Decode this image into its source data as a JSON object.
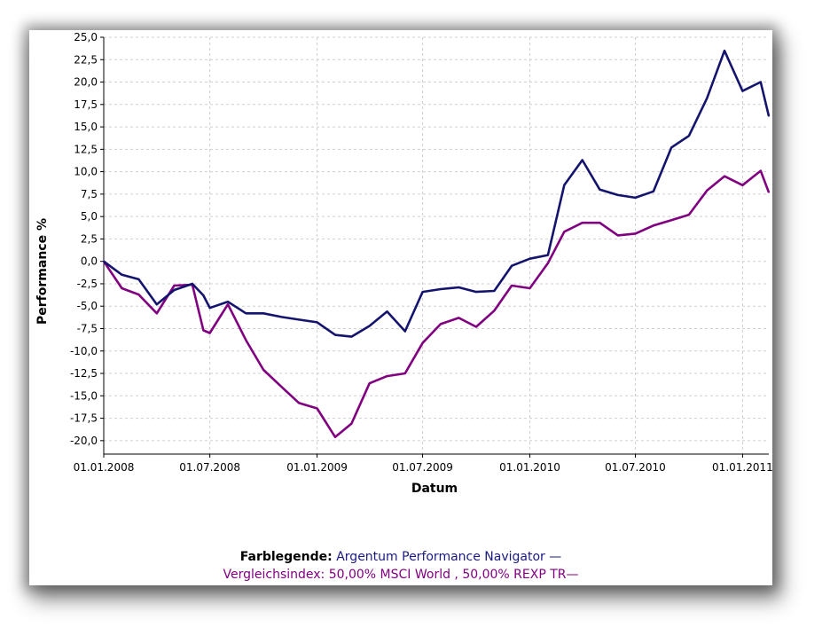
{
  "colors": {
    "series1": "#14146e",
    "series2": "#800080"
  },
  "legend": {
    "label": "Farblegende:",
    "series1_text": "Argentum Performance Navigator —",
    "series2_text": "Vergleichsindex: 50,00% MSCI World , 50,00% REXP TR—"
  },
  "chart_data": {
    "type": "line",
    "title": "",
    "xlabel": "Datum",
    "ylabel": "Performance %",
    "ylim": [
      -21.5,
      25.0
    ],
    "xlim": [
      "2008-01-01",
      "2011-02-15"
    ],
    "grid": true,
    "legend_position": "bottom",
    "y_ticks": [
      "25,0",
      "22,5",
      "20,0",
      "17,5",
      "15,0",
      "12,5",
      "10,0",
      "7,5",
      "5,0",
      "2,5",
      "0,0",
      "-2,5",
      "-5,0",
      "-7,5",
      "-10,0",
      "-12,5",
      "-15,0",
      "-17,5",
      "-20,0"
    ],
    "x_tick_labels": [
      {
        "label": "01.01.2008",
        "date": "2008-01-01"
      },
      {
        "label": "01.07.2008",
        "date": "2008-07-01"
      },
      {
        "label": "01.01.2009",
        "date": "2009-01-01"
      },
      {
        "label": "01.07.2009",
        "date": "2009-07-01"
      },
      {
        "label": "01.01.2010",
        "date": "2010-01-01"
      },
      {
        "label": "01.07.2010",
        "date": "2010-07-01"
      },
      {
        "label": "01.01.2011",
        "date": "2011-01-01"
      }
    ],
    "series": [
      {
        "name": "Argentum Performance Navigator",
        "points": [
          [
            "2008-01-01",
            0.0
          ],
          [
            "2008-02-01",
            -1.5
          ],
          [
            "2008-03-01",
            -2.0
          ],
          [
            "2008-04-01",
            -4.8
          ],
          [
            "2008-05-01",
            -3.2
          ],
          [
            "2008-06-01",
            -2.5
          ],
          [
            "2008-06-20",
            -3.8
          ],
          [
            "2008-07-01",
            -5.2
          ],
          [
            "2008-08-01",
            -4.5
          ],
          [
            "2008-09-01",
            -5.8
          ],
          [
            "2008-10-01",
            -5.8
          ],
          [
            "2008-11-01",
            -6.2
          ],
          [
            "2008-12-01",
            -6.5
          ],
          [
            "2009-01-01",
            -6.8
          ],
          [
            "2009-02-01",
            -8.2
          ],
          [
            "2009-03-01",
            -8.4
          ],
          [
            "2009-04-01",
            -7.2
          ],
          [
            "2009-05-01",
            -5.6
          ],
          [
            "2009-06-01",
            -7.8
          ],
          [
            "2009-07-01",
            -3.4
          ],
          [
            "2009-08-01",
            -3.1
          ],
          [
            "2009-09-01",
            -2.9
          ],
          [
            "2009-10-01",
            -3.4
          ],
          [
            "2009-11-01",
            -3.3
          ],
          [
            "2009-12-01",
            -0.5
          ],
          [
            "2010-01-01",
            0.3
          ],
          [
            "2010-02-01",
            0.7
          ],
          [
            "2010-03-01",
            8.5
          ],
          [
            "2010-04-01",
            11.3
          ],
          [
            "2010-05-01",
            8.0
          ],
          [
            "2010-06-01",
            7.4
          ],
          [
            "2010-07-01",
            7.1
          ],
          [
            "2010-08-01",
            7.8
          ],
          [
            "2010-09-01",
            12.7
          ],
          [
            "2010-10-01",
            14.0
          ],
          [
            "2010-11-01",
            18.2
          ],
          [
            "2010-12-01",
            23.5
          ],
          [
            "2011-01-01",
            19.0
          ],
          [
            "2011-02-01",
            20.0
          ],
          [
            "2011-02-15",
            16.2
          ]
        ]
      },
      {
        "name": "Vergleichsindex: 50,00% MSCI World , 50,00% REXP TR",
        "points": [
          [
            "2008-01-01",
            0.0
          ],
          [
            "2008-02-01",
            -3.0
          ],
          [
            "2008-03-01",
            -3.7
          ],
          [
            "2008-04-01",
            -5.8
          ],
          [
            "2008-05-01",
            -2.7
          ],
          [
            "2008-06-01",
            -2.6
          ],
          [
            "2008-06-20",
            -7.7
          ],
          [
            "2008-07-01",
            -8.0
          ],
          [
            "2008-08-01",
            -4.8
          ],
          [
            "2008-09-01",
            -8.8
          ],
          [
            "2008-10-01",
            -12.1
          ],
          [
            "2008-11-01",
            -14.0
          ],
          [
            "2008-12-01",
            -15.8
          ],
          [
            "2009-01-01",
            -16.4
          ],
          [
            "2009-02-01",
            -19.6
          ],
          [
            "2009-03-01",
            -18.1
          ],
          [
            "2009-04-01",
            -13.6
          ],
          [
            "2009-05-01",
            -12.8
          ],
          [
            "2009-06-01",
            -12.5
          ],
          [
            "2009-07-01",
            -9.1
          ],
          [
            "2009-08-01",
            -7.0
          ],
          [
            "2009-09-01",
            -6.3
          ],
          [
            "2009-10-01",
            -7.3
          ],
          [
            "2009-11-01",
            -5.5
          ],
          [
            "2009-12-01",
            -2.7
          ],
          [
            "2010-01-01",
            -3.0
          ],
          [
            "2010-02-01",
            -0.2
          ],
          [
            "2010-03-01",
            3.3
          ],
          [
            "2010-04-01",
            4.3
          ],
          [
            "2010-05-01",
            4.3
          ],
          [
            "2010-06-01",
            2.9
          ],
          [
            "2010-07-01",
            3.1
          ],
          [
            "2010-08-01",
            4.0
          ],
          [
            "2010-09-01",
            4.6
          ],
          [
            "2010-10-01",
            5.2
          ],
          [
            "2010-11-01",
            7.9
          ],
          [
            "2010-12-01",
            9.5
          ],
          [
            "2011-01-01",
            8.5
          ],
          [
            "2011-02-01",
            10.1
          ],
          [
            "2011-02-15",
            7.7
          ]
        ]
      }
    ]
  }
}
